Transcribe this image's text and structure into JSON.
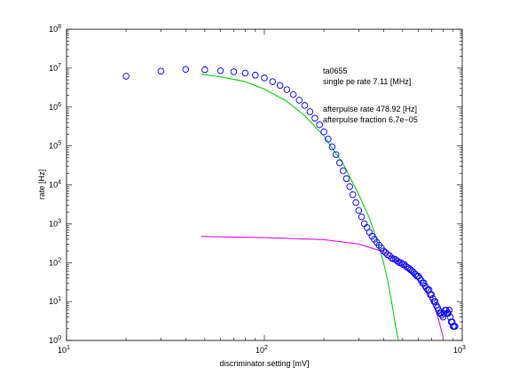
{
  "chart_data": {
    "type": "scatter",
    "xscale": "log",
    "yscale": "log",
    "xlim": [
      10,
      1000
    ],
    "ylim": [
      1,
      100000000
    ],
    "xlabel": "discriminator setting [mV]",
    "ylabel": "rate [Hz]",
    "x_tick_labels": [
      {
        "value": 10,
        "base": "10",
        "exp": "1"
      },
      {
        "value": 100,
        "base": "10",
        "exp": "2"
      },
      {
        "value": 1000,
        "base": "10",
        "exp": "3"
      }
    ],
    "y_tick_labels": [
      {
        "value": 1,
        "base": "10",
        "exp": "0"
      },
      {
        "value": 10,
        "base": "10",
        "exp": "1"
      },
      {
        "value": 100,
        "base": "10",
        "exp": "2"
      },
      {
        "value": 1000,
        "base": "10",
        "exp": "3"
      },
      {
        "value": 10000,
        "base": "10",
        "exp": "4"
      },
      {
        "value": 100000,
        "base": "10",
        "exp": "5"
      },
      {
        "value": 1000000,
        "base": "10",
        "exp": "6"
      },
      {
        "value": 10000000,
        "base": "10",
        "exp": "7"
      },
      {
        "value": 100000000,
        "base": "10",
        "exp": "8"
      }
    ],
    "annotations": [
      "ta0655",
      "single pe rate 7.11 [MHz]",
      "afterpulse rate 478.92 [Hz]",
      "afterpulse fraction 6.7e−05"
    ],
    "series": [
      {
        "kind": "markers",
        "color": "#0000ff",
        "x": [
          20,
          30,
          40,
          50,
          60,
          70,
          80,
          90,
          100,
          110,
          120,
          130,
          140,
          150,
          160,
          170,
          180,
          190,
          200,
          210,
          220,
          230,
          240,
          250,
          260,
          270,
          280,
          290,
          300,
          310,
          320,
          330,
          340,
          350,
          360,
          370,
          380,
          390,
          400,
          410,
          420,
          430,
          440,
          450,
          460,
          470,
          480,
          490,
          500,
          510,
          520,
          530,
          540,
          550,
          560,
          570,
          580,
          590,
          600,
          610,
          620,
          630,
          640,
          650,
          660,
          670,
          680,
          690,
          700,
          710,
          720,
          730,
          740,
          750,
          760,
          770,
          780,
          790,
          800,
          810,
          820,
          830,
          840,
          850,
          860,
          870,
          880,
          890,
          900,
          910,
          920
        ],
        "y": [
          6200000,
          8400000,
          9300000,
          9100000,
          8600000,
          8100000,
          7500000,
          6600000,
          5600000,
          4500000,
          3600000,
          2800000,
          2100000,
          1500000,
          1100000,
          760000,
          520000,
          350000,
          230000,
          150000,
          95000,
          60000,
          37000,
          23000,
          14500,
          9000,
          5600,
          3500,
          2200,
          1500,
          1000,
          800,
          600,
          480,
          400,
          330,
          280,
          240,
          200,
          180,
          160,
          150,
          130,
          125,
          120,
          110,
          100,
          100,
          90,
          90,
          80,
          75,
          70,
          65,
          60,
          55,
          50,
          45,
          45,
          40,
          35,
          30,
          30,
          25,
          22,
          20,
          20,
          15,
          15,
          12,
          10,
          10,
          8,
          7,
          6,
          5,
          5,
          4.5,
          4,
          5,
          6,
          6,
          5,
          5,
          6,
          4,
          3,
          3,
          2.3,
          2.3,
          2.3
        ]
      },
      {
        "kind": "line",
        "color": "#00cc00",
        "x": [
          48,
          60,
          80,
          100,
          130,
          160,
          200,
          250,
          300,
          340,
          380,
          400,
          420,
          440,
          460,
          480
        ],
        "y": [
          7000000,
          6000000,
          4500000,
          2900000,
          1400000,
          600000,
          180000,
          35000,
          5600,
          1400,
          260,
          100,
          35,
          9.5,
          2.4,
          0.8
        ]
      },
      {
        "kind": "line",
        "color": "#dd00dd",
        "x": [
          48,
          100,
          200,
          300,
          400,
          500,
          600,
          700,
          750,
          800
        ],
        "y": [
          470,
          440,
          390,
          300,
          190,
          90,
          36,
          10.5,
          4.5,
          1.2
        ]
      }
    ],
    "grid": false
  }
}
